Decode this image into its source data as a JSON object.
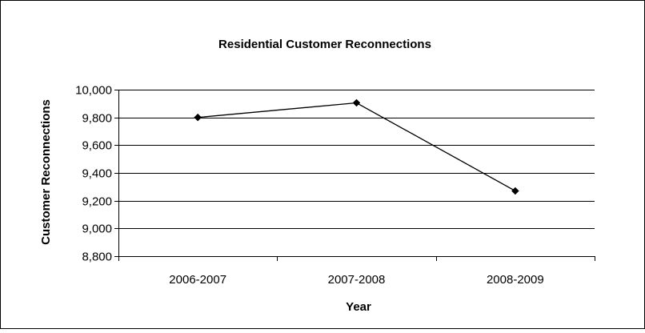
{
  "chart_data": {
    "type": "line",
    "title": "Residential Customer Reconnections",
    "xlabel": "Year",
    "ylabel": "Customer Reconnections",
    "categories": [
      "2006-2007",
      "2007-2008",
      "2008-2009"
    ],
    "series": [
      {
        "values": [
          9800,
          9905,
          9270
        ],
        "marker": "diamond",
        "color": "#000000"
      }
    ],
    "ylim": [
      8800,
      10000
    ],
    "yticks": [
      8800,
      9000,
      9200,
      9400,
      9600,
      9800,
      10000
    ],
    "ytick_labels": [
      "8,800",
      "9,000",
      "9,200",
      "9,400",
      "9,600",
      "9,800",
      "10,000"
    ],
    "grid": "horizontal",
    "legend": "none"
  }
}
